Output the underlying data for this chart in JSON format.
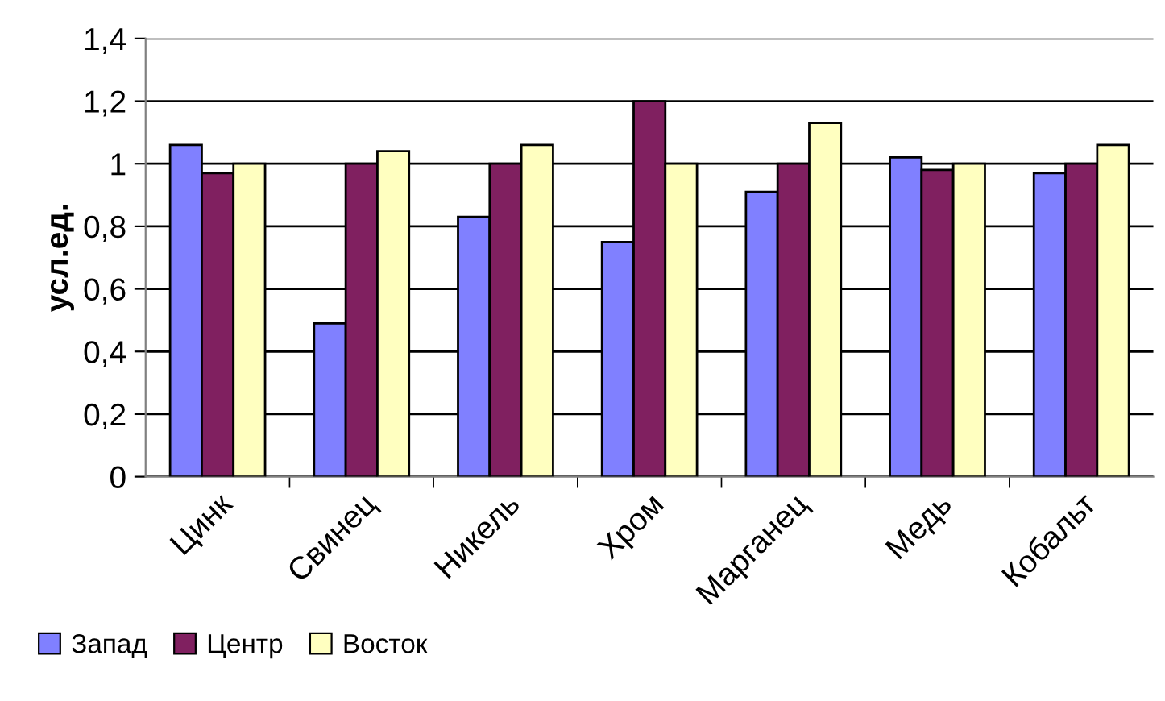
{
  "chart_data": {
    "type": "bar",
    "ylabel": "усл.ед.",
    "categories": [
      "Цинк",
      "Свинец",
      "Никель",
      "Хром",
      "Марганец",
      "Медь",
      "Кобальт"
    ],
    "series": [
      {
        "name": "Запад",
        "color": "#8080ff",
        "values": [
          1.06,
          0.49,
          0.83,
          0.75,
          0.91,
          1.02,
          0.97
        ]
      },
      {
        "name": "Центр",
        "color": "#802060",
        "values": [
          0.97,
          1.0,
          1.0,
          1.2,
          1.0,
          0.98,
          1.0
        ]
      },
      {
        "name": "Восток",
        "color": "#ffffc0",
        "values": [
          1.0,
          1.04,
          1.06,
          1.0,
          1.13,
          1.0,
          1.06
        ]
      }
    ],
    "ylim": [
      0,
      1.4
    ],
    "yticks": [
      0,
      {
        "value": 0.2,
        "label": "0,2"
      },
      {
        "value": 0.4,
        "label": "0,4"
      },
      {
        "value": 0.6,
        "label": "0,6"
      },
      {
        "value": 0.8,
        "label": "0,8"
      },
      1,
      {
        "value": 1.2,
        "label": "1,2"
      },
      {
        "value": 1.4,
        "label": "1,4"
      }
    ],
    "grid": "y",
    "legend": "bottom left"
  }
}
